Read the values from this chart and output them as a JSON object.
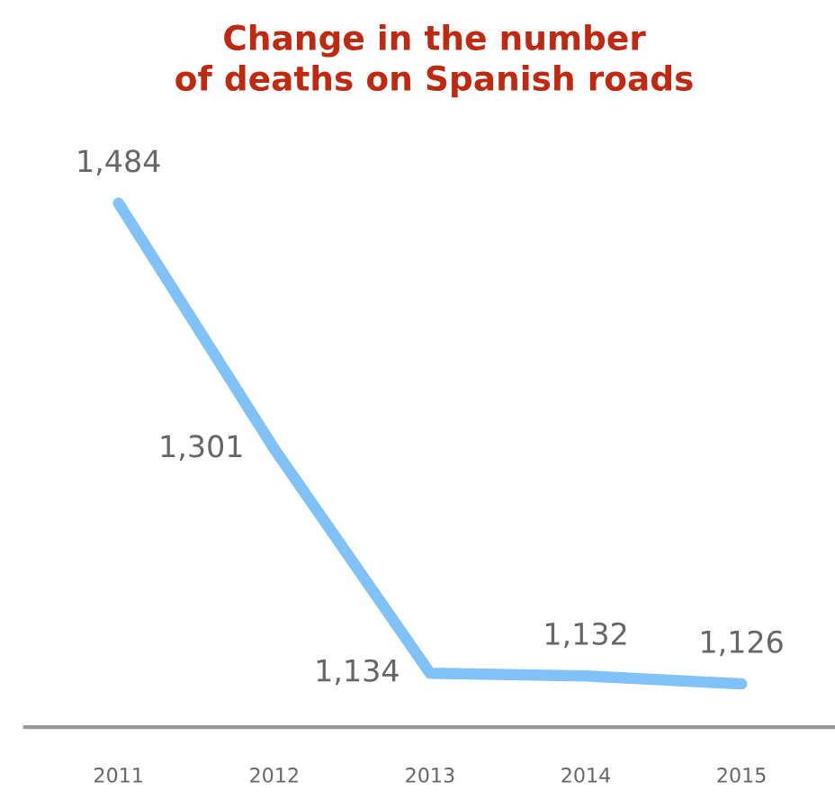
{
  "chart_data": {
    "type": "line",
    "title": "Change in the number\nof deaths on Spanish roads",
    "categories": [
      "2011",
      "2012",
      "2013",
      "2014",
      "2015"
    ],
    "series": [
      {
        "color": "#80c1f7",
        "values": [
          1484,
          1301,
          1134,
          1132,
          1126
        ],
        "value_labels": [
          "1,484",
          "1,301",
          "1,134",
          "1,132",
          "1,126"
        ]
      }
    ],
    "grid": false,
    "legend": false,
    "marker": "none",
    "line_style": "solid",
    "tick_labels": "x"
  }
}
